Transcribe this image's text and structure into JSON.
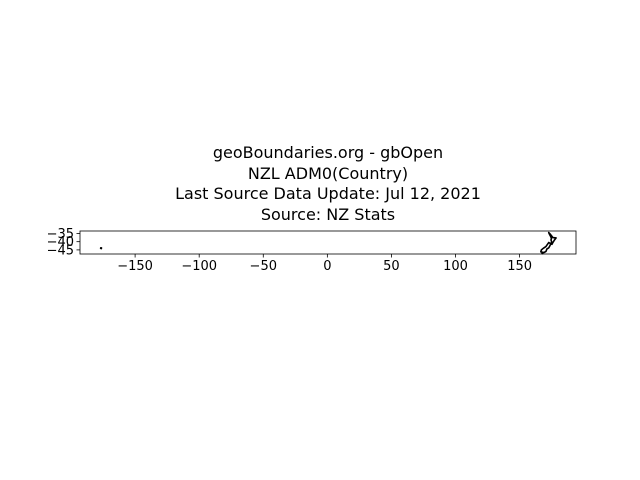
{
  "title": {
    "line1": "geoBoundaries.org - gbOpen",
    "line2": "NZL ADM0(Country)",
    "line3": "Last Source Data Update: Jul 12, 2021",
    "line4": "Source: NZ Stats"
  },
  "chart_data": {
    "type": "map",
    "xlim": [
      -193,
      194
    ],
    "ylim": [
      -47.5,
      -33.5
    ],
    "xticks": [
      -150,
      -100,
      -50,
      0,
      50,
      100,
      150
    ],
    "xtick_labels": [
      "−150",
      "−100",
      "−50",
      "0",
      "50",
      "100",
      "150"
    ],
    "yticks": [
      -35,
      -40,
      -45
    ],
    "ytick_labels": [
      "−35",
      "−40",
      "−45"
    ],
    "grid": false,
    "colors": {
      "outline": "#000000",
      "background": "#ffffff"
    },
    "features": [
      {
        "name": "North Island",
        "coords": [
          [
            172.7,
            -34.4
          ],
          [
            174.0,
            -35.5
          ],
          [
            175.0,
            -36.5
          ],
          [
            176.0,
            -37.5
          ],
          [
            178.5,
            -37.7
          ],
          [
            177.0,
            -39.2
          ],
          [
            176.0,
            -40.5
          ],
          [
            175.2,
            -41.6
          ],
          [
            174.6,
            -41.2
          ],
          [
            175.0,
            -39.9
          ],
          [
            174.5,
            -39.0
          ],
          [
            174.8,
            -38.0
          ],
          [
            174.3,
            -37.0
          ],
          [
            173.1,
            -35.2
          ],
          [
            172.7,
            -34.4
          ]
        ]
      },
      {
        "name": "South Island",
        "coords": [
          [
            172.8,
            -40.5
          ],
          [
            174.3,
            -41.3
          ],
          [
            173.5,
            -42.7
          ],
          [
            172.8,
            -43.7
          ],
          [
            171.2,
            -44.5
          ],
          [
            170.6,
            -45.9
          ],
          [
            169.0,
            -46.6
          ],
          [
            166.5,
            -46.2
          ],
          [
            167.0,
            -45.0
          ],
          [
            168.5,
            -44.0
          ],
          [
            170.5,
            -43.0
          ],
          [
            171.6,
            -41.8
          ],
          [
            172.8,
            -40.5
          ]
        ]
      },
      {
        "name": "Stewart Island",
        "coords": [
          [
            167.6,
            -46.7
          ],
          [
            168.2,
            -46.9
          ],
          [
            167.8,
            -47.3
          ],
          [
            167.5,
            -47.0
          ],
          [
            167.6,
            -46.7
          ]
        ]
      },
      {
        "name": "Chatham Islands",
        "coords": [
          [
            -176.8,
            -43.7
          ],
          [
            -176.2,
            -43.8
          ],
          [
            -176.4,
            -44.2
          ],
          [
            -176.9,
            -44.0
          ],
          [
            -176.8,
            -43.7
          ]
        ]
      }
    ]
  }
}
